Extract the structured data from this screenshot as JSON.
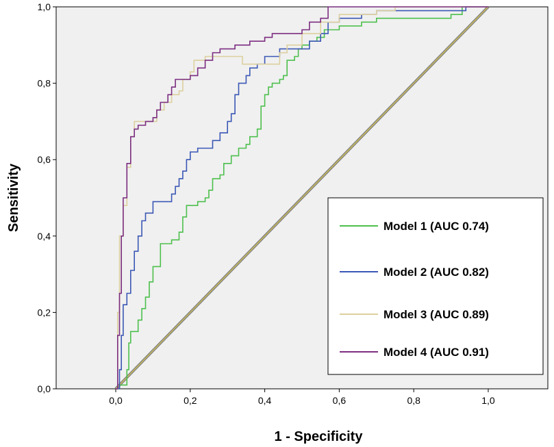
{
  "chart_data": {
    "type": "line",
    "title": "",
    "xlabel": "1 - Specificity",
    "ylabel": "Sensitivity",
    "xlim": [
      -0.16,
      1.16
    ],
    "ylim": [
      0,
      1
    ],
    "x_ticks": [
      "0,0",
      "0,2",
      "0,4",
      "0,6",
      "0,8",
      "1,0"
    ],
    "y_ticks": [
      "0,0",
      "0,2",
      "0,4",
      "0,6",
      "0,8",
      "1,0"
    ],
    "grid": false,
    "legend_position": "bottom-right",
    "reference_line": {
      "points": [
        [
          0,
          0
        ],
        [
          1,
          1
        ]
      ],
      "color": "#808080",
      "accent": "#e8d44d"
    },
    "series": [
      {
        "name": "Model 1 (AUC 0.74)",
        "color": "#4cbf4c",
        "points": [
          [
            0,
            0
          ],
          [
            0.01,
            0.01
          ],
          [
            0.03,
            0.05
          ],
          [
            0.035,
            0.12
          ],
          [
            0.04,
            0.15
          ],
          [
            0.06,
            0.18
          ],
          [
            0.07,
            0.21
          ],
          [
            0.08,
            0.24
          ],
          [
            0.09,
            0.28
          ],
          [
            0.1,
            0.32
          ],
          [
            0.12,
            0.35
          ],
          [
            0.12,
            0.38
          ],
          [
            0.15,
            0.39
          ],
          [
            0.17,
            0.41
          ],
          [
            0.18,
            0.45
          ],
          [
            0.19,
            0.48
          ],
          [
            0.22,
            0.49
          ],
          [
            0.24,
            0.5
          ],
          [
            0.25,
            0.52
          ],
          [
            0.26,
            0.55
          ],
          [
            0.28,
            0.56
          ],
          [
            0.29,
            0.59
          ],
          [
            0.31,
            0.61
          ],
          [
            0.33,
            0.63
          ],
          [
            0.35,
            0.64
          ],
          [
            0.36,
            0.66
          ],
          [
            0.38,
            0.68
          ],
          [
            0.39,
            0.74
          ],
          [
            0.4,
            0.77
          ],
          [
            0.41,
            0.79
          ],
          [
            0.42,
            0.8
          ],
          [
            0.44,
            0.81
          ],
          [
            0.45,
            0.82
          ],
          [
            0.46,
            0.86
          ],
          [
            0.48,
            0.87
          ],
          [
            0.49,
            0.89
          ],
          [
            0.5,
            0.9
          ],
          [
            0.52,
            0.91
          ],
          [
            0.54,
            0.92
          ],
          [
            0.56,
            0.94
          ],
          [
            0.6,
            0.95
          ],
          [
            0.66,
            0.96
          ],
          [
            0.7,
            0.97
          ],
          [
            0.75,
            0.97
          ],
          [
            0.9,
            0.98
          ],
          [
            0.93,
            1.0
          ],
          [
            1,
            1
          ]
        ]
      },
      {
        "name": "Model 2 (AUC 0.82)",
        "color": "#3a57b5",
        "points": [
          [
            0,
            0
          ],
          [
            0.01,
            0.05
          ],
          [
            0.015,
            0.14
          ],
          [
            0.02,
            0.22
          ],
          [
            0.03,
            0.25
          ],
          [
            0.04,
            0.31
          ],
          [
            0.05,
            0.36
          ],
          [
            0.06,
            0.4
          ],
          [
            0.07,
            0.44
          ],
          [
            0.08,
            0.46
          ],
          [
            0.1,
            0.49
          ],
          [
            0.14,
            0.49
          ],
          [
            0.15,
            0.51
          ],
          [
            0.16,
            0.53
          ],
          [
            0.17,
            0.55
          ],
          [
            0.18,
            0.57
          ],
          [
            0.19,
            0.6
          ],
          [
            0.2,
            0.62
          ],
          [
            0.22,
            0.63
          ],
          [
            0.25,
            0.63
          ],
          [
            0.26,
            0.65
          ],
          [
            0.28,
            0.67
          ],
          [
            0.3,
            0.7
          ],
          [
            0.31,
            0.72
          ],
          [
            0.32,
            0.77
          ],
          [
            0.33,
            0.8
          ],
          [
            0.35,
            0.82
          ],
          [
            0.36,
            0.84
          ],
          [
            0.38,
            0.85
          ],
          [
            0.4,
            0.87
          ],
          [
            0.44,
            0.89
          ],
          [
            0.5,
            0.89
          ],
          [
            0.52,
            0.91
          ],
          [
            0.55,
            0.93
          ],
          [
            0.57,
            0.96
          ],
          [
            0.6,
            0.97
          ],
          [
            0.66,
            0.98
          ],
          [
            0.7,
            0.99
          ],
          [
            0.9,
            0.99
          ],
          [
            0.94,
            1.0
          ],
          [
            1,
            1
          ]
        ]
      },
      {
        "name": "Model 3 (AUC 0.89)",
        "color": "#dccf9e",
        "points": [
          [
            0,
            0
          ],
          [
            0.005,
            0.2
          ],
          [
            0.01,
            0.4
          ],
          [
            0.02,
            0.48
          ],
          [
            0.03,
            0.58
          ],
          [
            0.04,
            0.66
          ],
          [
            0.05,
            0.7
          ],
          [
            0.1,
            0.7
          ],
          [
            0.11,
            0.73
          ],
          [
            0.13,
            0.75
          ],
          [
            0.15,
            0.77
          ],
          [
            0.17,
            0.78
          ],
          [
            0.18,
            0.81
          ],
          [
            0.2,
            0.83
          ],
          [
            0.21,
            0.86
          ],
          [
            0.24,
            0.87
          ],
          [
            0.3,
            0.87
          ],
          [
            0.34,
            0.85
          ],
          [
            0.42,
            0.85
          ],
          [
            0.44,
            0.88
          ],
          [
            0.46,
            0.9
          ],
          [
            0.5,
            0.93
          ],
          [
            0.55,
            0.96
          ],
          [
            0.6,
            0.98
          ],
          [
            0.7,
            0.99
          ],
          [
            0.75,
            1.0
          ],
          [
            1,
            1
          ]
        ]
      },
      {
        "name": "Model 4 (AUC 0.91)",
        "color": "#7b2d80",
        "points": [
          [
            0,
            0
          ],
          [
            0.005,
            0.14
          ],
          [
            0.01,
            0.25
          ],
          [
            0.015,
            0.4
          ],
          [
            0.02,
            0.5
          ],
          [
            0.03,
            0.59
          ],
          [
            0.04,
            0.66
          ],
          [
            0.05,
            0.68
          ],
          [
            0.06,
            0.69
          ],
          [
            0.08,
            0.7
          ],
          [
            0.1,
            0.71
          ],
          [
            0.11,
            0.73
          ],
          [
            0.12,
            0.75
          ],
          [
            0.14,
            0.77
          ],
          [
            0.15,
            0.79
          ],
          [
            0.16,
            0.81
          ],
          [
            0.19,
            0.81
          ],
          [
            0.2,
            0.82
          ],
          [
            0.22,
            0.84
          ],
          [
            0.24,
            0.86
          ],
          [
            0.26,
            0.88
          ],
          [
            0.28,
            0.89
          ],
          [
            0.32,
            0.9
          ],
          [
            0.36,
            0.91
          ],
          [
            0.4,
            0.92
          ],
          [
            0.42,
            0.93
          ],
          [
            0.5,
            0.94
          ],
          [
            0.52,
            0.96
          ],
          [
            0.55,
            0.97
          ],
          [
            0.57,
            1.0
          ],
          [
            1,
            1
          ]
        ]
      }
    ]
  }
}
